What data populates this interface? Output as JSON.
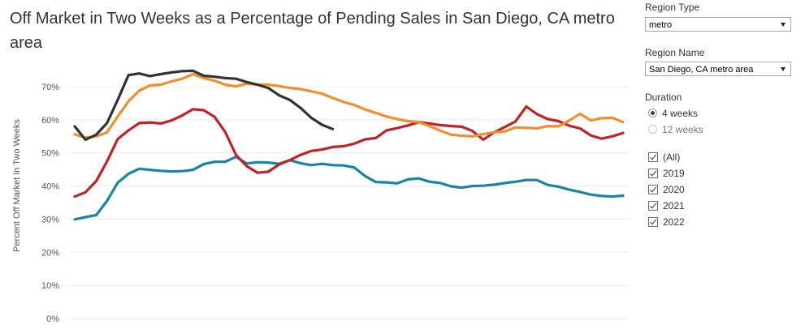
{
  "title": "Off Market in Two Weeks as a Percentage of Pending Sales in San Diego, CA metro area",
  "filters": {
    "region_type": {
      "label": "Region Type",
      "value": "metro"
    },
    "region_name": {
      "label": "Region Name",
      "value": "San Diego, CA metro area"
    },
    "duration": {
      "label": "Duration",
      "options": [
        {
          "label": "4 weeks",
          "selected": true
        },
        {
          "label": "12 weeks",
          "selected": false
        }
      ]
    },
    "years": [
      {
        "label": "(All)",
        "checked": true
      },
      {
        "label": "2019",
        "checked": true
      },
      {
        "label": "2020",
        "checked": true
      },
      {
        "label": "2021",
        "checked": true
      },
      {
        "label": "2022",
        "checked": true
      }
    ]
  },
  "chart_data": {
    "type": "line",
    "title": "Off Market in Two Weeks as a Percentage of Pending Sales in San Diego, CA metro area",
    "ylabel": "Percent Off Market In Two Weeks",
    "xlabel": "",
    "ylim": [
      0,
      75
    ],
    "yticks": [
      "0%",
      "10%",
      "20%",
      "30%",
      "40%",
      "50%",
      "60%",
      "70%"
    ],
    "grid": true,
    "x_count": 52,
    "series": [
      {
        "key": "2019",
        "color": "#1a85a3",
        "values": [
          29.9,
          30.6,
          31.2,
          35.5,
          41.0,
          43.7,
          45.2,
          44.9,
          44.6,
          44.4,
          44.5,
          44.9,
          46.6,
          47.3,
          47.3,
          48.8,
          46.8,
          47.2,
          47.1,
          46.7,
          47.8,
          46.9,
          46.3,
          46.7,
          46.3,
          46.2,
          45.6,
          43.0,
          41.2,
          41.1,
          40.8,
          42.0,
          42.3,
          41.3,
          40.9,
          39.9,
          39.5,
          40.0,
          40.1,
          40.4,
          40.9,
          41.3,
          41.8,
          41.8,
          40.3,
          39.8,
          38.9,
          38.2,
          37.4,
          37.0,
          36.8,
          37.1
        ]
      },
      {
        "key": "2020",
        "color": "#c42127",
        "values": [
          36.8,
          38.1,
          41.5,
          47.4,
          54.2,
          56.8,
          59.0,
          59.2,
          58.9,
          59.8,
          61.3,
          63.2,
          62.9,
          60.9,
          56.3,
          49.4,
          46.0,
          44.0,
          44.3,
          46.5,
          47.8,
          49.4,
          50.6,
          51.0,
          51.8,
          52.0,
          52.8,
          54.1,
          54.5,
          56.8,
          57.5,
          58.3,
          59.3,
          58.9,
          58.4,
          58.1,
          57.9,
          56.6,
          54.0,
          56.2,
          57.8,
          59.5,
          64.0,
          61.7,
          60.2,
          59.6,
          58.2,
          57.4,
          55.3,
          54.3,
          55.0,
          56.0
        ]
      },
      {
        "key": "2021",
        "color": "#f28e2c",
        "values": [
          55.6,
          54.6,
          55.0,
          56.2,
          61.0,
          65.6,
          68.8,
          70.4,
          70.6,
          71.6,
          72.4,
          73.8,
          72.6,
          71.8,
          70.6,
          70.1,
          70.9,
          70.6,
          70.6,
          70.2,
          69.6,
          69.3,
          68.6,
          67.9,
          66.6,
          65.4,
          64.5,
          63.1,
          62.1,
          61.0,
          60.2,
          59.6,
          59.3,
          58.1,
          56.7,
          55.5,
          55.2,
          55.0,
          55.7,
          56.2,
          56.5,
          57.7,
          57.6,
          57.4,
          58.1,
          58.0,
          59.8,
          61.8,
          59.8,
          60.5,
          60.6,
          59.3
        ]
      },
      {
        "key": "2022",
        "color": "#333333",
        "values": [
          58.0,
          54.0,
          55.5,
          59.0,
          66.0,
          73.5,
          74.0,
          73.2,
          73.8,
          74.3,
          74.7,
          74.8,
          73.3,
          73.0,
          72.6,
          72.4,
          71.4,
          70.6,
          69.6,
          67.4,
          66.0,
          63.6,
          60.6,
          58.5,
          57.2
        ]
      }
    ]
  }
}
